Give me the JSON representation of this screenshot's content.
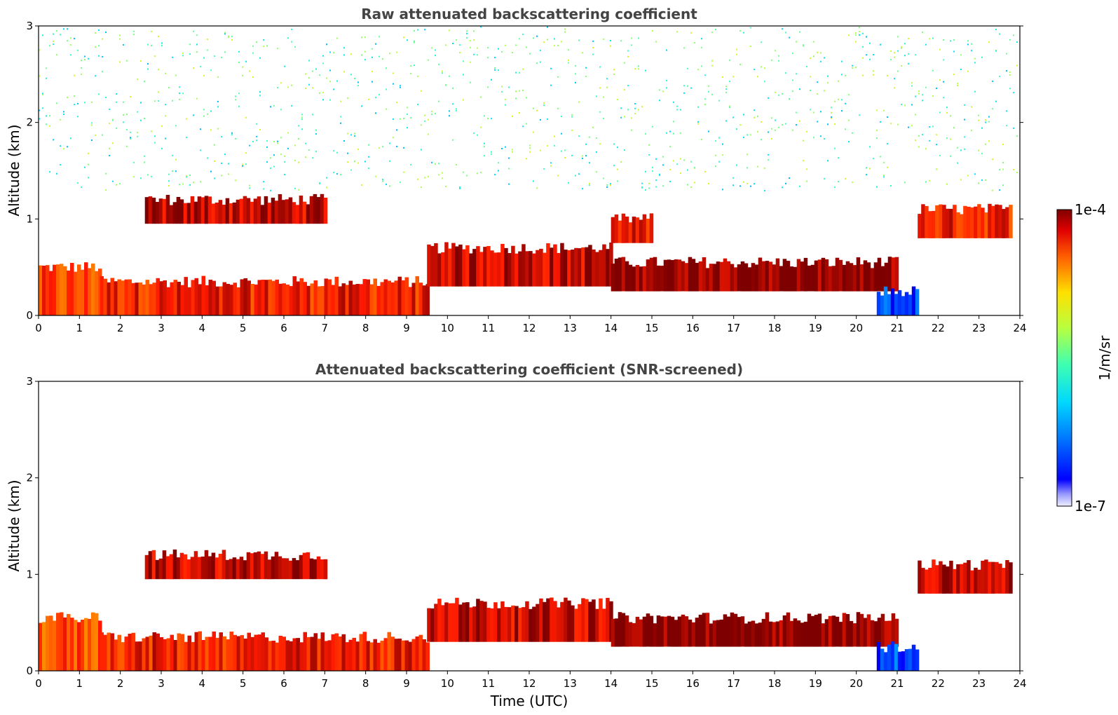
{
  "colormap": [
    "#00007f",
    "#0000ff",
    "#007fff",
    "#00e5ff",
    "#3fffbf",
    "#7fff7f",
    "#bfff3f",
    "#ffe500",
    "#ff7f00",
    "#ff1a00",
    "#7f0000"
  ],
  "chart_data": [
    {
      "type": "heatmap",
      "title": "Raw attenuated backscattering coefficient",
      "xlabel": "",
      "ylabel": "Altitude (km)",
      "xlim": [
        0,
        24
      ],
      "ylim": [
        0,
        3
      ],
      "x_ticks": [
        "0",
        "1",
        "2",
        "3",
        "4",
        "5",
        "6",
        "7",
        "8",
        "9",
        "10",
        "11",
        "12",
        "13",
        "14",
        "15",
        "16",
        "17",
        "18",
        "19",
        "20",
        "21",
        "22",
        "23",
        "24"
      ],
      "y_ticks": [
        "0",
        "1",
        "2",
        "3"
      ],
      "features": [
        {
          "t0": 0,
          "t1": 1.5,
          "h0": 0,
          "h1": 0.5,
          "value": 0.85
        },
        {
          "t0": 1.5,
          "t1": 9.5,
          "h0": 0,
          "h1": 0.35,
          "value": 0.9
        },
        {
          "t0": 2.6,
          "t1": 7.0,
          "h0": 0.95,
          "h1": 1.2,
          "value": 0.95
        },
        {
          "t0": 9.5,
          "t1": 14.0,
          "h0": 0.3,
          "h1": 0.7,
          "value": 0.95
        },
        {
          "t0": 14.0,
          "t1": 21.0,
          "h0": 0.25,
          "h1": 0.55,
          "value": 1.0
        },
        {
          "t0": 14.0,
          "t1": 15.0,
          "h0": 0.75,
          "h1": 1.0,
          "value": 0.9
        },
        {
          "t0": 20.5,
          "t1": 21.5,
          "h0": 0,
          "h1": 0.25,
          "value": 0.15
        },
        {
          "t0": 21.5,
          "t1": 23.8,
          "h0": 0.8,
          "h1": 1.1,
          "value": 0.9
        },
        {
          "t0": 0,
          "t1": 24,
          "h0": 1.3,
          "h1": 3.0,
          "value": 0.45
        }
      ]
    },
    {
      "type": "heatmap",
      "title": "Attenuated backscattering coefficient (SNR-screened)",
      "xlabel": "Time (UTC)",
      "ylabel": "Altitude (km)",
      "xlim": [
        0,
        24
      ],
      "ylim": [
        0,
        3
      ],
      "x_ticks": [
        "0",
        "1",
        "2",
        "3",
        "4",
        "5",
        "6",
        "7",
        "8",
        "9",
        "10",
        "11",
        "12",
        "13",
        "14",
        "15",
        "16",
        "17",
        "18",
        "19",
        "20",
        "21",
        "22",
        "23",
        "24"
      ],
      "y_ticks": [
        "0",
        "1",
        "2",
        "3"
      ],
      "features": [
        {
          "t0": 0,
          "t1": 1.5,
          "h0": 0,
          "h1": 0.55,
          "value": 0.85
        },
        {
          "t0": 1.5,
          "t1": 9.5,
          "h0": 0,
          "h1": 0.35,
          "value": 0.9
        },
        {
          "t0": 2.6,
          "t1": 7.0,
          "h0": 0.95,
          "h1": 1.2,
          "value": 0.95
        },
        {
          "t0": 9.5,
          "t1": 14.0,
          "h0": 0.3,
          "h1": 0.7,
          "value": 0.95
        },
        {
          "t0": 14.0,
          "t1": 21.0,
          "h0": 0.25,
          "h1": 0.55,
          "value": 1.0
        },
        {
          "t0": 20.5,
          "t1": 21.5,
          "h0": 0,
          "h1": 0.25,
          "value": 0.15
        },
        {
          "t0": 21.5,
          "t1": 23.8,
          "h0": 0.8,
          "h1": 1.1,
          "value": 0.95
        }
      ]
    }
  ],
  "colorbar": {
    "label": "1/m/sr",
    "max_label": "1e-4",
    "min_label": "1e-7",
    "scale": "log"
  }
}
